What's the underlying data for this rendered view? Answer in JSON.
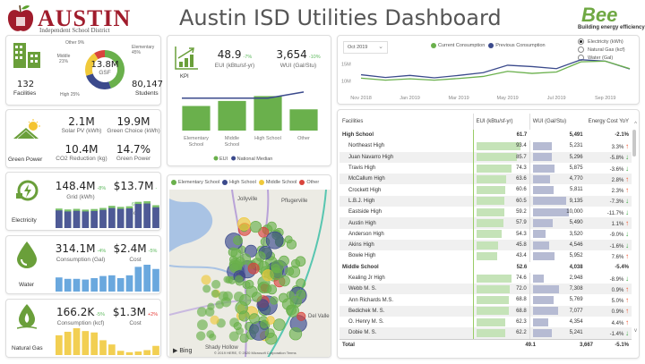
{
  "header": {
    "logo_word": "AUSTIN",
    "logo_sub": "Independent School District",
    "title": "Austin ISD Utilities Dashboard",
    "bee_logo": "Bee",
    "bee_tagline": "Building energy efficiency"
  },
  "overview": {
    "facilities_value": "132",
    "facilities_label": "Facilities",
    "students_value": "80,147",
    "students_label": "Students",
    "donut_center_value": "13.8M",
    "donut_center_label": "GSF",
    "segments": [
      {
        "label": "Elementary",
        "pct": "45%",
        "value": 45,
        "color": "#6ab04c"
      },
      {
        "label": "High",
        "pct": "25%",
        "value": 25,
        "color": "#3b4a8c"
      },
      {
        "label": "Middle",
        "pct": "21%",
        "value": 21,
        "color": "#f0c93a"
      },
      {
        "label": "Other",
        "pct": "9%",
        "value": 9,
        "color": "#d9443c"
      }
    ]
  },
  "green_power": {
    "label": "Green Power",
    "metrics": [
      {
        "value": "2.1M",
        "label": "Solar PV (kWh)"
      },
      {
        "value": "19.9M",
        "label": "Green Choice (kWh)"
      },
      {
        "value": "10.4M",
        "label": "CO2 Reduction (kg)"
      },
      {
        "value": "14.7%",
        "label": "Green Power"
      }
    ]
  },
  "electricity": {
    "label": "Electricity",
    "main_value": "148.4M",
    "main_change": "-8%",
    "main_label": "Grid (kWh)",
    "cost_value": "$13.7M",
    "cost_change": "-6%",
    "cost_label": "Cost",
    "bars": [
      11.6,
      10.9,
      11.3,
      10.9,
      11.2,
      11.9,
      13.1,
      12.6,
      12.9,
      15.8,
      16.1,
      13.6
    ],
    "bars_prev": [
      12.8,
      12.2,
      12.6,
      12.1,
      12.5,
      13.2,
      14.6,
      13.9,
      14.3,
      17.2,
      17.6,
      15.0
    ],
    "color": "#4e5a96",
    "color2": "#7dc36b"
  },
  "water": {
    "label": "Water",
    "main_value": "314.1M",
    "main_change": "-4%",
    "main_label": "Consumption (Gal)",
    "cost_value": "$2.4M",
    "cost_change": "-5%",
    "cost_label": "Cost",
    "bars": [
      20,
      18,
      18,
      17,
      19,
      22,
      23,
      19,
      23,
      35,
      38,
      32
    ],
    "color": "#6aa8de"
  },
  "natural_gas": {
    "label": "Natural Gas",
    "main_value": "166.2K",
    "main_change": "-5%",
    "main_label": "Consumption (kcf)",
    "cost_value": "$1.3M",
    "cost_change": "+2%",
    "cost_label": "Cost",
    "bars": [
      28,
      33,
      38,
      34,
      32,
      21,
      15,
      6,
      4,
      5,
      7,
      13
    ],
    "color": "#f2cf52"
  },
  "kpi": {
    "label": "KPI",
    "eui_value": "48.9",
    "eui_change": "-7%",
    "eui_label": "EUI (kBtu/sf-yr)",
    "wui_value": "3,654",
    "wui_change": "-10%",
    "wui_label": "WUI (Gal/Stu)"
  },
  "chart_data": [
    {
      "type": "bar",
      "title": "",
      "categories": [
        "Elementary School",
        "Middle School",
        "High School",
        "Other"
      ],
      "series": [
        {
          "name": "EUI",
          "type": "bar",
          "values": [
            44,
            53,
            61.7,
            38
          ],
          "color": "#6ab04c"
        },
        {
          "name": "National Median",
          "type": "line",
          "values": [
            58,
            58,
            58,
            69
          ],
          "color": "#3b4a8c"
        }
      ],
      "ylim": [
        0,
        80
      ],
      "legend": "bottom"
    },
    {
      "type": "line",
      "categories": [
        "Nov 2018",
        "Dec 2018",
        "Jan 2019",
        "Feb 2019",
        "Mar 2019",
        "Apr 2019",
        "May 2019",
        "Jun 2019",
        "Jul 2019",
        "Aug 2019",
        "Sep 2019",
        "Oct 2019"
      ],
      "tick_labels": [
        "Nov 2018",
        "Jan 2019",
        "Mar 2019",
        "May 2019",
        "Jul 2019",
        "Sep 2019"
      ],
      "y_ticks": [
        "10M",
        "15M"
      ],
      "ylim": [
        8,
        18
      ],
      "series": [
        {
          "name": "Current Consumption",
          "values": [
            10.8,
            10.2,
            10.6,
            10.2,
            10.7,
            11.3,
            12.8,
            12.2,
            12.6,
            15.6,
            15.8,
            13.6
          ],
          "color": "#6ab04c"
        },
        {
          "name": "Previous Consumption",
          "values": [
            11.8,
            11.0,
            11.6,
            10.9,
            11.6,
            12.4,
            14.6,
            14.2,
            13.6,
            16.2,
            15.8,
            13.5
          ],
          "color": "#3b4a8c"
        }
      ],
      "legend": "top"
    }
  ],
  "trend": {
    "month_select": "Oct 2019",
    "radios": [
      {
        "label": "Electricity (kWh)",
        "selected": true
      },
      {
        "label": "Natural Gas (kcf)",
        "selected": false
      },
      {
        "label": "Water (Gal)",
        "selected": false
      }
    ]
  },
  "map": {
    "legend": [
      {
        "label": "Elementary School",
        "color": "#6ab04c"
      },
      {
        "label": "High School",
        "color": "#3b4a8c"
      },
      {
        "label": "Middle School",
        "color": "#f0c93a"
      },
      {
        "label": "Other",
        "color": "#d9443c"
      }
    ],
    "places": [
      "Jollyville",
      "Pflugerville",
      "Del Valle",
      "Shady Hollow"
    ],
    "roads": [
      "LOOP 1",
      "LOOP",
      "TOLL 290",
      "TOLL 130",
      "TOLL 45",
      "TOLL 130",
      "TOLL",
      "71"
    ],
    "bing": "Bing",
    "copyright": "© 2019 HERE, © 2020 Microsoft Corporation",
    "terms": "Terms"
  },
  "table": {
    "columns": [
      "Facilities",
      "EUI (kBtu/sf-yr)",
      "WUI (Gal/Stu)",
      "Energy Cost YoY"
    ],
    "rows": [
      {
        "type": "group",
        "name": "High School",
        "eui": "61.7",
        "wui": "5,491",
        "yoy": "-2.1%"
      },
      {
        "name": "Northeast High",
        "eui": "93.4",
        "euiv": 93.4,
        "wui": "5,231",
        "wuiv": 5231,
        "yoy": "3.3%",
        "dir": "up"
      },
      {
        "name": "Juan Navarro High",
        "eui": "85.7",
        "euiv": 85.7,
        "wui": "5,296",
        "wuiv": 5296,
        "yoy": "-5.8%",
        "dir": "down"
      },
      {
        "name": "Travis High",
        "eui": "74.3",
        "euiv": 74.3,
        "wui": "5,875",
        "wuiv": 5875,
        "yoy": "-3.6%",
        "dir": "down"
      },
      {
        "name": "McCallum High",
        "eui": "63.6",
        "euiv": 63.6,
        "wui": "4,770",
        "wuiv": 4770,
        "yoy": "2.8%",
        "dir": "up"
      },
      {
        "name": "Crockett High",
        "eui": "60.6",
        "euiv": 60.6,
        "wui": "5,811",
        "wuiv": 5811,
        "yoy": "2.3%",
        "dir": "up"
      },
      {
        "name": "L.B.J. High",
        "eui": "60.5",
        "euiv": 60.5,
        "wui": "9,135",
        "wuiv": 9135,
        "yoy": "-7.3%",
        "dir": "down"
      },
      {
        "name": "Eastside High",
        "eui": "59.2",
        "euiv": 59.2,
        "wui": "10,000",
        "wuiv": 10000,
        "yoy": "-11.7%",
        "dir": "down"
      },
      {
        "name": "Austin High",
        "eui": "57.9",
        "euiv": 57.9,
        "wui": "5,490",
        "wuiv": 5490,
        "yoy": "1.1%",
        "dir": "up"
      },
      {
        "name": "Anderson High",
        "eui": "54.3",
        "euiv": 54.3,
        "wui": "3,520",
        "wuiv": 3520,
        "yoy": "-9.0%",
        "dir": "down"
      },
      {
        "name": "Akins High",
        "eui": "45.8",
        "euiv": 45.8,
        "wui": "4,546",
        "wuiv": 4546,
        "yoy": "-1.6%",
        "dir": "down"
      },
      {
        "name": "Bowie High",
        "eui": "43.4",
        "euiv": 43.4,
        "wui": "5,952",
        "wuiv": 5952,
        "yoy": "7.6%",
        "dir": "up"
      },
      {
        "type": "group",
        "name": "Middle School",
        "eui": "52.6",
        "wui": "4,038",
        "yoy": "-5.4%"
      },
      {
        "name": "Kealing Jr High",
        "eui": "74.6",
        "euiv": 74.6,
        "wui": "2,948",
        "wuiv": 2948,
        "yoy": "-8.9%",
        "dir": "down"
      },
      {
        "name": "Webb M. S.",
        "eui": "72.0",
        "euiv": 72.0,
        "wui": "7,308",
        "wuiv": 7308,
        "yoy": "0.9%",
        "dir": "up"
      },
      {
        "name": "Ann Richards M.S.",
        "eui": "68.8",
        "euiv": 68.8,
        "wui": "5,769",
        "wuiv": 5769,
        "yoy": "5.0%",
        "dir": "up"
      },
      {
        "name": "Bedichek M. S.",
        "eui": "68.8",
        "euiv": 68.8,
        "wui": "7,077",
        "wuiv": 7077,
        "yoy": "0.9%",
        "dir": "up"
      },
      {
        "name": "O. Henry M. S.",
        "eui": "62.3",
        "euiv": 62.3,
        "wui": "4,354",
        "wuiv": 4354,
        "yoy": "4.4%",
        "dir": "up"
      },
      {
        "name": "Dobie M. S.",
        "eui": "62.2",
        "euiv": 62.2,
        "wui": "5,241",
        "wuiv": 5241,
        "yoy": "-1.4%",
        "dir": "down"
      }
    ],
    "total": {
      "name": "Total",
      "eui": "49.1",
      "wui": "3,667",
      "yoy": "-5.1%"
    }
  }
}
